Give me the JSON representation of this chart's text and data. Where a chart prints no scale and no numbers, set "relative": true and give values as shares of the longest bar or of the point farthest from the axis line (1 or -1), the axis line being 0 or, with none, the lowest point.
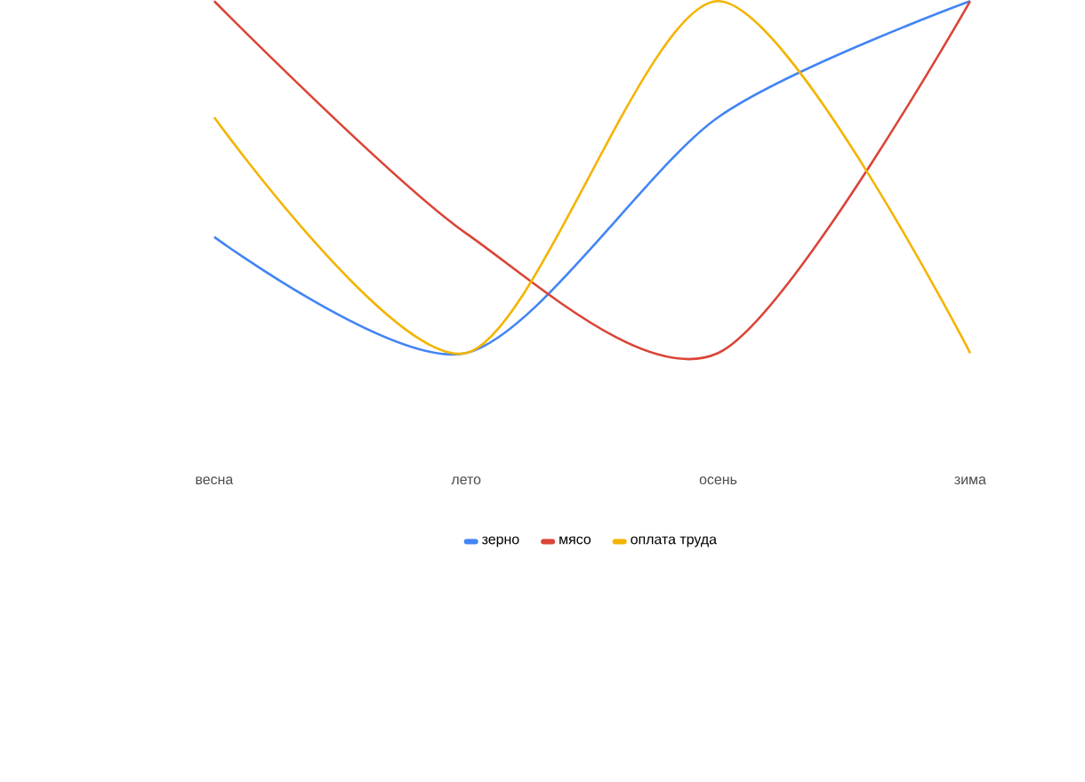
{
  "chart_data": {
    "type": "line",
    "relative": true,
    "categories": [
      "весна",
      "лето",
      "осень",
      "зима"
    ],
    "series": [
      {
        "name": "зерно",
        "color": "#4285f4",
        "values": [
          0.33,
          0,
          0.67,
          1
        ]
      },
      {
        "name": "мясо",
        "color": "#db4437",
        "values": [
          1,
          0.34,
          0,
          1
        ]
      },
      {
        "name": "оплата труда",
        "color": "#f4b400",
        "values": [
          0.67,
          0,
          1,
          0
        ]
      }
    ],
    "legend": "bottom",
    "tick_labels": "x",
    "marker": "none",
    "line_style": "solid",
    "grid": false
  }
}
